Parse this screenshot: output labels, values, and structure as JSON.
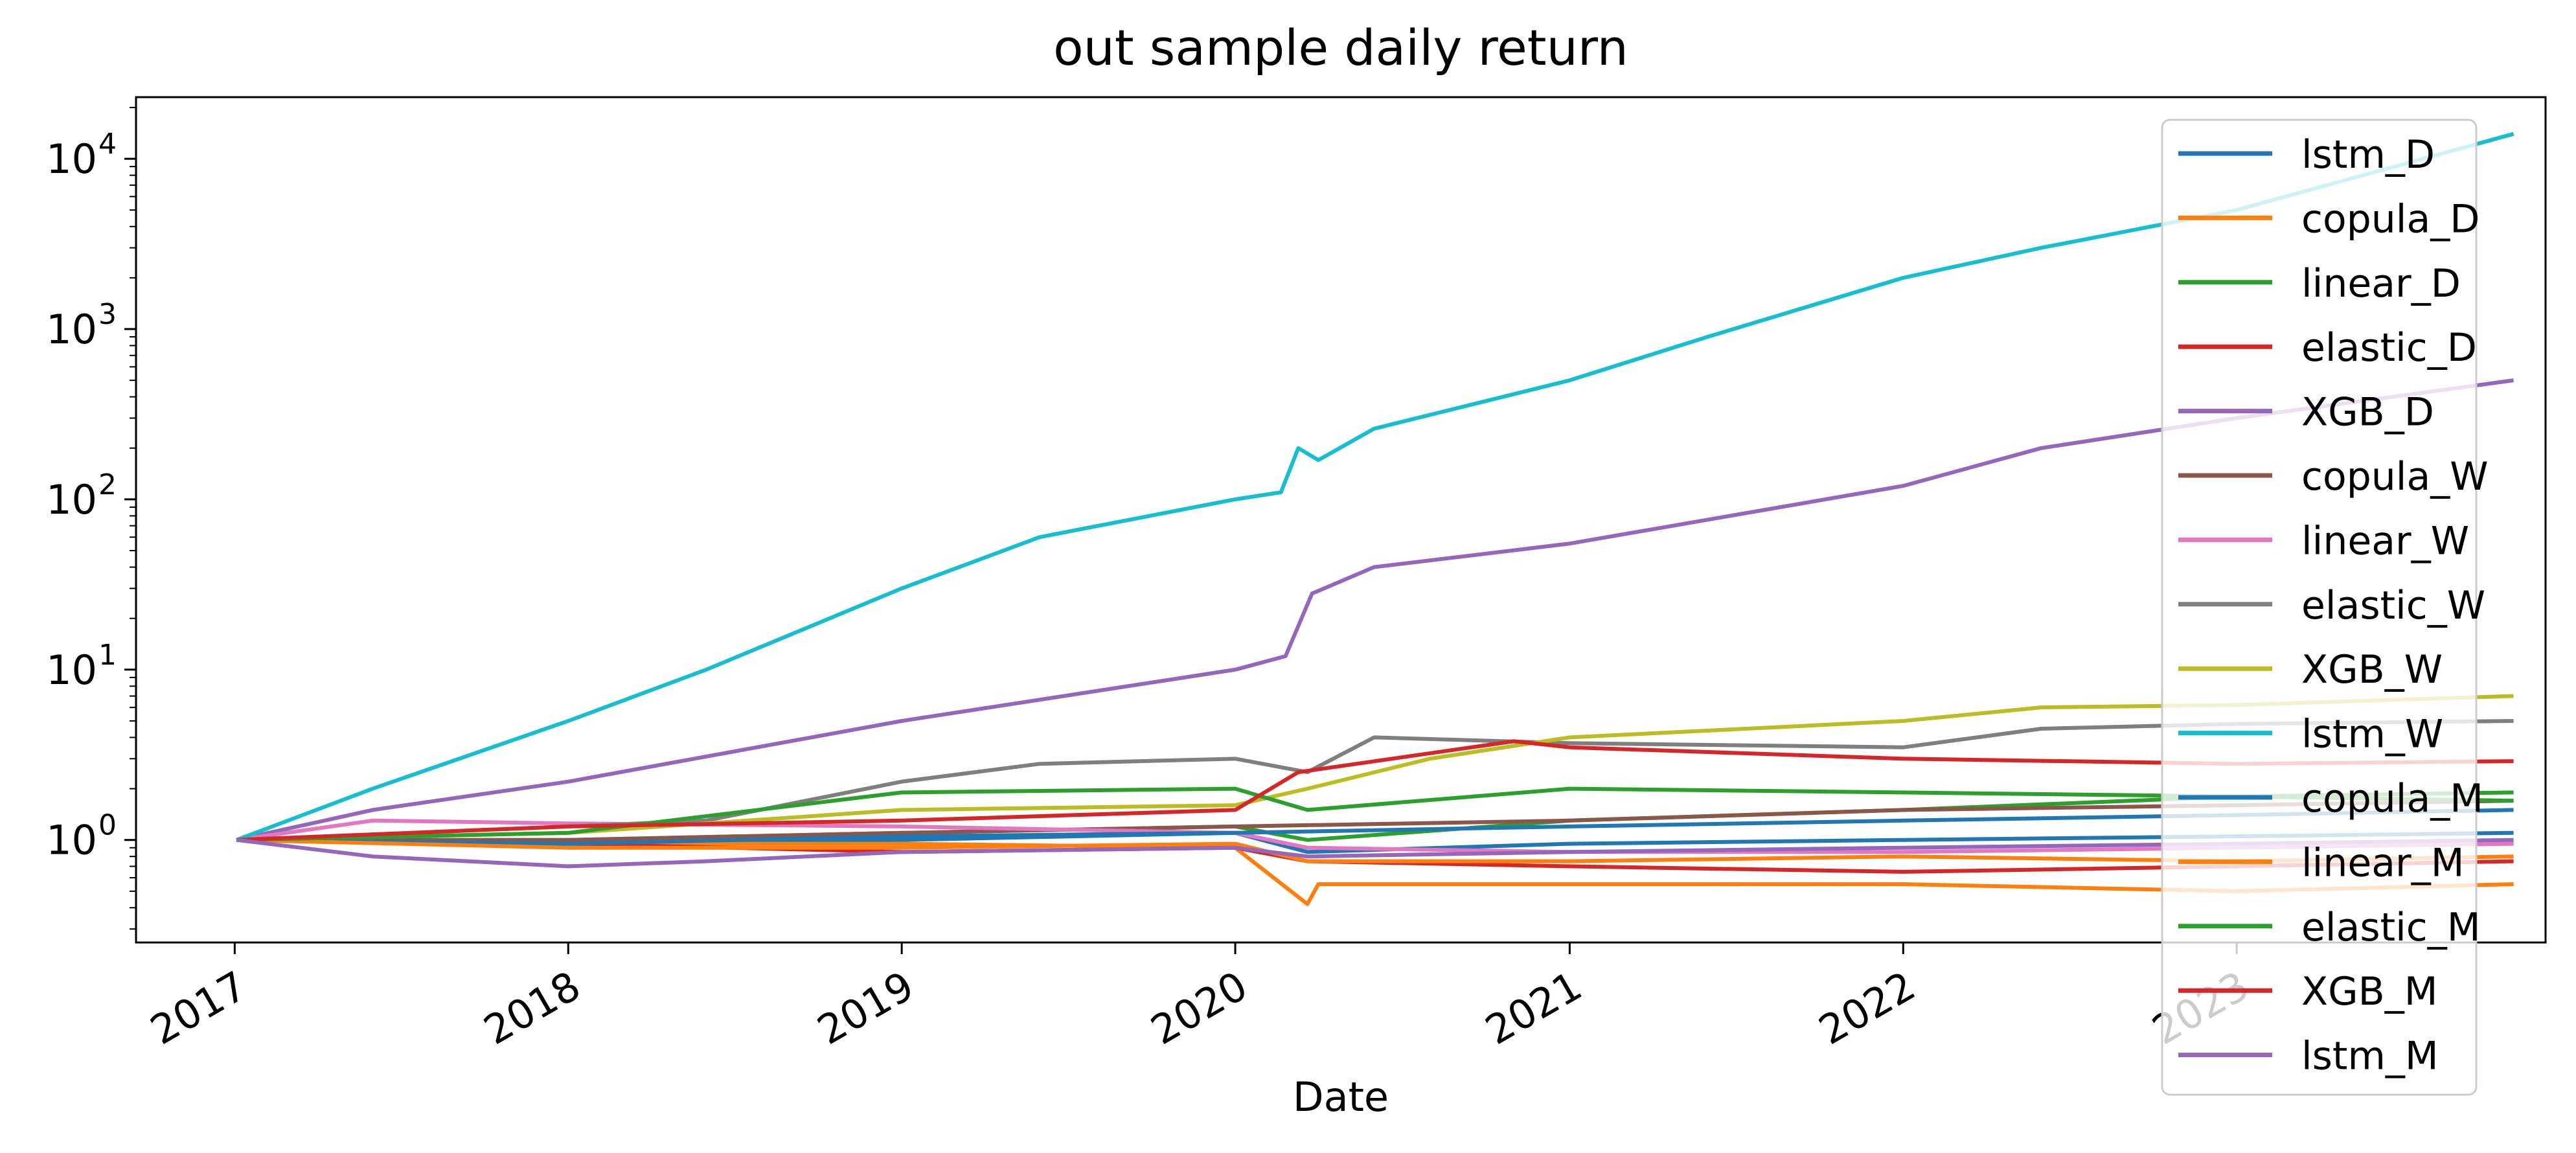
{
  "chart_data": {
    "type": "line",
    "title": "out sample daily return",
    "xlabel": "Date",
    "ylabel": "",
    "yscale": "log",
    "ylim": [
      0.25,
      23000
    ],
    "xlim": [
      "2016-09-15",
      "2023-12-05"
    ],
    "x_ticks": [
      "2017",
      "2018",
      "2019",
      "2020",
      "2021",
      "2022",
      "2023"
    ],
    "y_ticks": [
      {
        "value": 1,
        "base": "10",
        "exp": "0"
      },
      {
        "value": 10,
        "base": "10",
        "exp": "1"
      },
      {
        "value": 100,
        "base": "10",
        "exp": "2"
      },
      {
        "value": 1000,
        "base": "10",
        "exp": "3"
      },
      {
        "value": 10000,
        "base": "10",
        "exp": "4"
      }
    ],
    "grid": false,
    "legend_position": "right",
    "series": [
      {
        "name": "lstm_D",
        "color": "#1f77b4",
        "x": [
          "2017-01-03",
          "2018-01-01",
          "2019-01-01",
          "2020-01-01",
          "2020-03-20",
          "2021-01-01",
          "2022-01-01",
          "2023-01-01",
          "2023-10-31"
        ],
        "values": [
          1.0,
          0.95,
          1.0,
          1.1,
          0.85,
          0.95,
          1.0,
          1.05,
          1.1
        ]
      },
      {
        "name": "copula_D",
        "color": "#ff7f0e",
        "x": [
          "2017-01-03",
          "2018-01-01",
          "2019-01-01",
          "2020-01-01",
          "2020-03-20",
          "2020-04-01",
          "2021-01-01",
          "2022-01-01",
          "2023-01-01",
          "2023-10-31"
        ],
        "values": [
          1.0,
          0.95,
          0.95,
          0.9,
          0.42,
          0.55,
          0.55,
          0.55,
          0.5,
          0.55
        ]
      },
      {
        "name": "linear_D",
        "color": "#2ca02c",
        "x": [
          "2017-01-03",
          "2018-01-01",
          "2019-01-01",
          "2020-01-01",
          "2020-03-20",
          "2021-01-01",
          "2022-01-01",
          "2023-01-01",
          "2023-10-31"
        ],
        "values": [
          1.0,
          1.0,
          1.1,
          1.2,
          1.0,
          1.3,
          1.5,
          1.8,
          1.9
        ]
      },
      {
        "name": "elastic_D",
        "color": "#d62728",
        "x": [
          "2017-01-03",
          "2018-01-01",
          "2019-01-01",
          "2020-01-01",
          "2020-03-20",
          "2021-01-01",
          "2022-01-01",
          "2023-01-01",
          "2023-10-31"
        ],
        "values": [
          1.0,
          0.95,
          0.85,
          0.9,
          0.75,
          0.7,
          0.65,
          0.7,
          0.75
        ]
      },
      {
        "name": "XGB_D",
        "color": "#9467bd",
        "x": [
          "2017-01-03",
          "2017-06-01",
          "2018-01-01",
          "2019-01-01",
          "2020-01-01",
          "2020-02-25",
          "2020-03-25",
          "2020-06-01",
          "2021-01-01",
          "2022-01-01",
          "2022-06-01",
          "2023-01-01",
          "2023-10-31"
        ],
        "values": [
          1.0,
          1.5,
          2.2,
          5.0,
          10.0,
          12.0,
          28.0,
          40.0,
          55.0,
          120.0,
          200.0,
          300.0,
          500.0
        ]
      },
      {
        "name": "copula_W",
        "color": "#8c564b",
        "x": [
          "2017-01-03",
          "2018-01-01",
          "2019-01-01",
          "2020-01-01",
          "2021-01-01",
          "2022-01-01",
          "2023-01-01",
          "2023-10-31"
        ],
        "values": [
          1.0,
          1.0,
          1.1,
          1.2,
          1.3,
          1.5,
          1.6,
          1.7
        ]
      },
      {
        "name": "linear_W",
        "color": "#e377c2",
        "x": [
          "2017-01-03",
          "2017-06-01",
          "2018-01-01",
          "2019-01-01",
          "2020-01-01",
          "2020-03-20",
          "2021-01-01",
          "2022-01-01",
          "2023-01-01",
          "2023-10-31"
        ],
        "values": [
          1.0,
          1.3,
          1.25,
          1.2,
          1.1,
          0.9,
          0.85,
          0.85,
          0.9,
          0.95
        ]
      },
      {
        "name": "elastic_W",
        "color": "#7f7f7f",
        "x": [
          "2017-01-03",
          "2018-01-01",
          "2018-06-01",
          "2019-01-01",
          "2019-06-01",
          "2020-01-01",
          "2020-03-20",
          "2020-06-01",
          "2021-01-01",
          "2022-01-01",
          "2022-06-01",
          "2023-01-01",
          "2023-10-31"
        ],
        "values": [
          1.0,
          1.2,
          1.3,
          2.2,
          2.8,
          3.0,
          2.5,
          4.0,
          3.7,
          3.5,
          4.5,
          4.8,
          5.0
        ]
      },
      {
        "name": "XGB_W",
        "color": "#bcbd22",
        "x": [
          "2017-01-03",
          "2018-01-01",
          "2019-01-01",
          "2020-01-01",
          "2020-03-20",
          "2020-08-01",
          "2021-01-01",
          "2022-01-01",
          "2022-06-01",
          "2023-01-01",
          "2023-10-31"
        ],
        "values": [
          1.0,
          1.1,
          1.5,
          1.6,
          2.0,
          3.0,
          4.0,
          5.0,
          6.0,
          6.2,
          7.0
        ]
      },
      {
        "name": "lstm_W",
        "color": "#17becf",
        "x": [
          "2017-01-03",
          "2017-06-01",
          "2018-01-01",
          "2018-06-01",
          "2019-01-01",
          "2019-06-01",
          "2020-01-01",
          "2020-02-20",
          "2020-03-10",
          "2020-04-01",
          "2020-06-01",
          "2021-01-01",
          "2021-06-01",
          "2022-01-01",
          "2022-06-01",
          "2023-01-01",
          "2023-10-31"
        ],
        "values": [
          1.0,
          2.0,
          5.0,
          10.0,
          30.0,
          60.0,
          100.0,
          110.0,
          200.0,
          170.0,
          260.0,
          500.0,
          900.0,
          2000.0,
          3000.0,
          5000.0,
          14000.0
        ]
      },
      {
        "name": "copula_M",
        "color": "#1f77b4",
        "x": [
          "2017-01-03",
          "2018-01-01",
          "2019-01-01",
          "2020-01-01",
          "2021-01-01",
          "2022-01-01",
          "2023-01-01",
          "2023-10-31"
        ],
        "values": [
          1.0,
          0.95,
          1.05,
          1.1,
          1.2,
          1.3,
          1.4,
          1.5
        ]
      },
      {
        "name": "linear_M",
        "color": "#ff7f0e",
        "x": [
          "2017-01-03",
          "2018-01-01",
          "2019-01-01",
          "2020-01-01",
          "2020-03-20",
          "2021-01-01",
          "2022-01-01",
          "2023-01-01",
          "2023-10-31"
        ],
        "values": [
          1.0,
          0.9,
          0.9,
          0.95,
          0.75,
          0.75,
          0.8,
          0.75,
          0.8
        ]
      },
      {
        "name": "elastic_M",
        "color": "#2ca02c",
        "x": [
          "2017-01-03",
          "2018-01-01",
          "2019-01-01",
          "2020-01-01",
          "2020-03-20",
          "2021-01-01",
          "2022-01-01",
          "2023-01-01",
          "2023-10-31"
        ],
        "values": [
          1.0,
          1.1,
          1.9,
          2.0,
          1.5,
          2.0,
          1.9,
          1.8,
          1.7
        ]
      },
      {
        "name": "XGB_M",
        "color": "#d62728",
        "x": [
          "2017-01-03",
          "2018-01-01",
          "2019-01-01",
          "2020-01-01",
          "2020-03-10",
          "2020-11-01",
          "2021-01-01",
          "2022-01-01",
          "2023-01-01",
          "2023-10-31"
        ],
        "values": [
          1.0,
          1.2,
          1.3,
          1.5,
          2.5,
          3.8,
          3.5,
          3.0,
          2.8,
          2.9
        ]
      },
      {
        "name": "lstm_M",
        "color": "#9467bd",
        "x": [
          "2017-01-03",
          "2017-06-01",
          "2018-01-01",
          "2018-06-01",
          "2019-01-01",
          "2020-01-01",
          "2020-03-20",
          "2021-01-01",
          "2022-01-01",
          "2023-01-01",
          "2023-10-31"
        ],
        "values": [
          1.0,
          0.8,
          0.7,
          0.75,
          0.85,
          0.9,
          0.8,
          0.85,
          0.9,
          0.95,
          1.0
        ]
      }
    ]
  }
}
